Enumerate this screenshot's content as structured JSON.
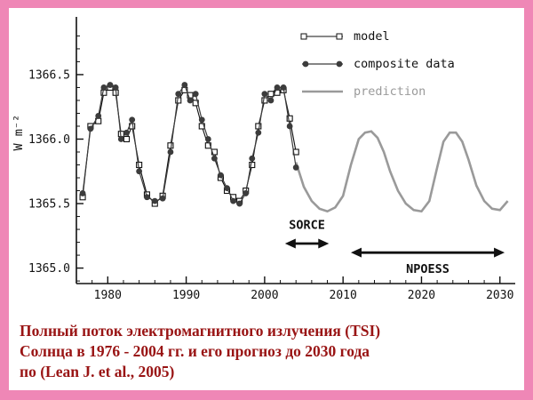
{
  "colors": {
    "frame_pink": "#ef87b6",
    "caption_text": "#991414",
    "chart_background": "#ffffff",
    "axis_color": "#111111",
    "prediction_gray": "#9a9a9a"
  },
  "caption": {
    "line1": "Полный поток электромагнитного излучения (TSI)",
    "line2": "Солнца в 1976 - 2004 гг. и его прогноз до 2030 года",
    "line3": "по  (Lean J. et al., 2005)"
  },
  "chart_data": {
    "type": "line",
    "title": "",
    "xlabel": "",
    "ylabel": "W m⁻²",
    "xlim": [
      1976,
      2031.5
    ],
    "ylim": [
      1364.88,
      1366.92
    ],
    "x_ticks": [
      1980,
      1990,
      2000,
      2010,
      2020,
      2030
    ],
    "y_ticks": [
      1365.0,
      1365.5,
      1366.0,
      1366.5
    ],
    "y_tick_labels": [
      "1365.0",
      "1365.5",
      "1366.0",
      "1366.5"
    ],
    "grid": false,
    "legend_position": "top-right",
    "series": [
      {
        "name": "model",
        "style": "open-square",
        "color": "#111111",
        "x": [
          1976.8,
          1977.8,
          1978.8,
          1979.5,
          1980.3,
          1981.0,
          1981.7,
          1982.4,
          1983.1,
          1984.0,
          1985.0,
          1986.0,
          1987.0,
          1988.0,
          1989.0,
          1989.8,
          1990.5,
          1991.2,
          1992.0,
          1992.8,
          1993.6,
          1994.4,
          1995.2,
          1996.0,
          1996.8,
          1997.6,
          1998.4,
          1999.2,
          2000.0,
          2000.8,
          2001.6,
          2002.4,
          2003.2,
          2004.0
        ],
        "y": [
          1365.55,
          1366.1,
          1366.14,
          1366.36,
          1366.4,
          1366.36,
          1366.04,
          1366.0,
          1366.1,
          1365.8,
          1365.57,
          1365.5,
          1365.56,
          1365.95,
          1366.3,
          1366.38,
          1366.34,
          1366.28,
          1366.1,
          1365.95,
          1365.9,
          1365.7,
          1365.6,
          1365.55,
          1365.52,
          1365.6,
          1365.8,
          1366.1,
          1366.3,
          1366.35,
          1366.36,
          1366.38,
          1366.16,
          1365.9
        ]
      },
      {
        "name": "composite data",
        "style": "filled-circle",
        "color": "#3c3c3c",
        "x": [
          1976.8,
          1977.8,
          1978.8,
          1979.5,
          1980.3,
          1981.0,
          1981.7,
          1982.4,
          1983.1,
          1984.0,
          1985.0,
          1986.0,
          1987.0,
          1988.0,
          1989.0,
          1989.8,
          1990.5,
          1991.2,
          1992.0,
          1992.8,
          1993.6,
          1994.4,
          1995.2,
          1996.0,
          1996.8,
          1997.6,
          1998.4,
          1999.2,
          2000.0,
          2000.8,
          2001.6,
          2002.4,
          2003.2,
          2004.0
        ],
        "y": [
          1365.58,
          1366.08,
          1366.18,
          1366.4,
          1366.42,
          1366.4,
          1366.0,
          1366.05,
          1366.15,
          1365.75,
          1365.55,
          1365.52,
          1365.54,
          1365.9,
          1366.35,
          1366.42,
          1366.3,
          1366.35,
          1366.15,
          1366.0,
          1365.85,
          1365.72,
          1365.62,
          1365.52,
          1365.5,
          1365.58,
          1365.85,
          1366.05,
          1366.35,
          1366.3,
          1366.4,
          1366.4,
          1366.1,
          1365.78
        ]
      },
      {
        "name": "prediction",
        "style": "line",
        "color": "#9a9a9a",
        "x": [
          2004.0,
          2005.0,
          2006.0,
          2007.0,
          2008.0,
          2009.0,
          2010.0,
          2011.0,
          2012.0,
          2012.8,
          2013.6,
          2014.4,
          2015.2,
          2016.0,
          2017.0,
          2018.0,
          2019.0,
          2020.0,
          2021.0,
          2022.0,
          2022.8,
          2023.6,
          2024.4,
          2025.2,
          2026.0,
          2027.0,
          2028.0,
          2029.0,
          2030.0,
          2031.0
        ],
        "y": [
          1365.82,
          1365.63,
          1365.52,
          1365.46,
          1365.44,
          1365.47,
          1365.56,
          1365.8,
          1366.0,
          1366.05,
          1366.06,
          1366.01,
          1365.9,
          1365.75,
          1365.6,
          1365.5,
          1365.45,
          1365.44,
          1365.52,
          1365.78,
          1365.98,
          1366.05,
          1366.05,
          1365.98,
          1365.84,
          1365.64,
          1365.52,
          1365.46,
          1365.45,
          1365.52
        ]
      }
    ],
    "annotations": [
      {
        "label": "SORCE",
        "arrow_span": [
          2002.6,
          2008.2
        ],
        "arrow_y": 1365.19,
        "label_x": 2005.4,
        "label_y": 1365.33
      },
      {
        "label": "NPOESS",
        "arrow_span": [
          2011.0,
          2030.6
        ],
        "arrow_y": 1365.12,
        "label_x": 2020.8,
        "label_y": 1364.99
      }
    ]
  }
}
